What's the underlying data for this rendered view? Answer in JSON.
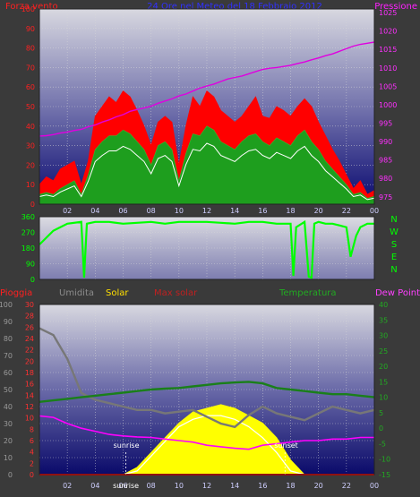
{
  "header": {
    "left_label": "Forza vento",
    "center_label": "24 Ore nel Meteo del 18 Febbraio 2012",
    "right_label": "Pressione"
  },
  "colors": {
    "wind_gust": "#ff0000",
    "wind_avg": "#1e9e1e",
    "wind_line": "#ffffff",
    "pressure": "#e000e0",
    "direction": "#00ff00",
    "rain": "#ff0000",
    "humidity": "#777777",
    "solar": "#ffff00",
    "max_solar": "#ffffff",
    "temperature": "#1a7f1a",
    "dew_point": "#ff00ff",
    "grid": "#d8d8d8"
  },
  "chart_data": [
    {
      "type": "area",
      "name": "wind-pressure",
      "left_axis_ticks": [
        "100",
        "90",
        "80",
        "70",
        "60",
        "50",
        "40",
        "30",
        "20",
        "10",
        "0"
      ],
      "right_axis_ticks": [
        "1025",
        "1020",
        "1015",
        "1010",
        "1005",
        "1000",
        "995",
        "990",
        "985",
        "980",
        "975"
      ],
      "ylim": [
        0,
        100
      ],
      "y2lim": [
        973,
        1026
      ],
      "x_ticks": [
        "02",
        "04",
        "06",
        "08",
        "10",
        "12",
        "14",
        "16",
        "18",
        "20",
        "22",
        "00"
      ],
      "x": [
        0,
        0.5,
        1,
        1.5,
        2,
        2.5,
        3,
        3.5,
        4,
        4.5,
        5,
        5.5,
        6,
        6.5,
        7,
        7.5,
        8,
        8.5,
        9,
        9.5,
        10,
        10.5,
        11,
        11.5,
        12,
        12.5,
        13,
        13.5,
        14,
        14.5,
        15,
        15.5,
        16,
        16.5,
        17,
        17.5,
        18,
        18.5,
        19,
        19.5,
        20,
        20.5,
        21,
        21.5,
        22,
        22.5,
        23,
        23.5,
        24
      ],
      "gust": [
        10,
        14,
        12,
        18,
        20,
        22,
        10,
        22,
        45,
        50,
        55,
        52,
        58,
        55,
        48,
        40,
        30,
        42,
        45,
        42,
        20,
        40,
        55,
        50,
        58,
        55,
        48,
        45,
        42,
        45,
        50,
        55,
        45,
        44,
        50,
        48,
        45,
        50,
        54,
        50,
        42,
        35,
        28,
        22,
        15,
        8,
        12,
        5,
        7
      ],
      "average": [
        5,
        6,
        5,
        8,
        10,
        12,
        5,
        15,
        28,
        32,
        35,
        35,
        38,
        36,
        32,
        28,
        20,
        30,
        32,
        28,
        12,
        26,
        36,
        35,
        40,
        38,
        32,
        30,
        28,
        32,
        35,
        36,
        32,
        30,
        34,
        32,
        30,
        35,
        38,
        32,
        28,
        22,
        18,
        14,
        10,
        5,
        6,
        3,
        4
      ],
      "pressure": [
        991.5,
        991.6,
        991.9,
        992.3,
        992.6,
        993.0,
        993.3,
        994.0,
        994.5,
        995.3,
        995.9,
        996.7,
        997.3,
        998.2,
        998.7,
        999.1,
        999.6,
        1000.4,
        1001.0,
        1001.6,
        1002.4,
        1002.9,
        1003.7,
        1004.5,
        1005.1,
        1005.6,
        1006.3,
        1007.0,
        1007.4,
        1007.8,
        1008.4,
        1009.0,
        1009.6,
        1009.9,
        1010.1,
        1010.4,
        1010.7,
        1011.2,
        1011.6,
        1012.2,
        1012.7,
        1013.3,
        1013.8,
        1014.5,
        1015.2,
        1015.9,
        1016.4,
        1016.7,
        1017.0
      ]
    },
    {
      "type": "line",
      "name": "wind-direction",
      "left_axis_ticks": [
        "360",
        "270",
        "180",
        "90",
        "0"
      ],
      "right_axis_letters": [
        "N",
        "W",
        "S",
        "E",
        "N"
      ],
      "ylim": [
        0,
        360
      ],
      "x": [
        0,
        1,
        2,
        3,
        3.2,
        3.4,
        4,
        5,
        6,
        7,
        8,
        9,
        10,
        11,
        12,
        13,
        14,
        15,
        16,
        17,
        18,
        18.2,
        18.4,
        19,
        19.3,
        19.5,
        19.7,
        20,
        20.5,
        21,
        21.5,
        22,
        22.3,
        22.7,
        23,
        23.5,
        24
      ],
      "values": [
        200,
        280,
        320,
        330,
        10,
        320,
        330,
        330,
        320,
        325,
        330,
        320,
        330,
        330,
        330,
        325,
        320,
        330,
        330,
        320,
        320,
        20,
        300,
        330,
        15,
        10,
        320,
        330,
        320,
        320,
        310,
        300,
        130,
        250,
        300,
        320,
        320
      ]
    },
    {
      "type": "line",
      "name": "weather-multi",
      "legend": [
        "Pioggia",
        "Umidita",
        "Solar",
        "Max solar",
        "Temperatura",
        "Dew Point"
      ],
      "left_axis_hum_ticks": [
        "100",
        "90",
        "80",
        "70",
        "60",
        "50",
        "40",
        "30",
        "20",
        "10",
        "0"
      ],
      "left_axis_rain_ticks": [
        "30",
        "28",
        "26",
        "24",
        "22",
        "20",
        "18",
        "16",
        "14",
        "12",
        "10",
        "8",
        "6",
        "4",
        "2",
        "0"
      ],
      "right_axis_ticks": [
        "40",
        "35",
        "30",
        "25",
        "20",
        "15",
        "10",
        "5",
        "0",
        "-5",
        "-10",
        "-15"
      ],
      "rain_ylim": [
        0,
        30
      ],
      "hum_ylim": [
        0,
        100
      ],
      "temp_ylim": [
        -15,
        40
      ],
      "x_ticks": [
        "02",
        "04",
        "06",
        "08",
        "10",
        "12",
        "14",
        "16",
        "18",
        "20",
        "22",
        "00"
      ],
      "x": [
        0,
        1,
        2,
        3,
        4,
        5,
        6,
        7,
        8,
        9,
        10,
        11,
        12,
        13,
        14,
        15,
        16,
        17,
        18,
        19,
        20,
        21,
        22,
        23,
        24
      ],
      "humidity": [
        86,
        82,
        68,
        48,
        44,
        42,
        40,
        38,
        38,
        36,
        37,
        38,
        34,
        30,
        28,
        35,
        40,
        36,
        34,
        32,
        36,
        40,
        38,
        36,
        38
      ],
      "temperature": [
        8.5,
        9,
        9.5,
        10,
        10.5,
        11,
        11.5,
        12,
        12.5,
        12.8,
        13,
        13.5,
        14,
        14.5,
        14.8,
        15,
        14.5,
        13,
        12.5,
        12,
        11.5,
        11,
        11,
        10.5,
        10
      ],
      "dew_point": [
        4,
        3.5,
        1.5,
        0,
        -1,
        -2,
        -2.5,
        -2.8,
        -3,
        -3.5,
        -4,
        -4.5,
        -5.5,
        -6,
        -6.5,
        -6.8,
        -5.5,
        -5,
        -4.5,
        -4,
        -4,
        -3.5,
        -3.5,
        -3,
        -3
      ],
      "solar": [
        0,
        0,
        0,
        0,
        0,
        0,
        0,
        1,
        3,
        5,
        7,
        8.5,
        9,
        9.5,
        9,
        8,
        7,
        5,
        2,
        0,
        0,
        0,
        0,
        0,
        0
      ],
      "max_solar": [
        0,
        0,
        0,
        0,
        0,
        0,
        0,
        0.5,
        2.5,
        4.5,
        6.5,
        7.5,
        8,
        8,
        7.5,
        6.5,
        5,
        3,
        0.5,
        0,
        0,
        0,
        0,
        0,
        0
      ],
      "rain": [
        0,
        0,
        0,
        0,
        0,
        0,
        0,
        0,
        0,
        0,
        0,
        0,
        0,
        0,
        0,
        0,
        0,
        0,
        0,
        0,
        0,
        0,
        0,
        0,
        0
      ],
      "sunrise_label": "sunrise",
      "sunset_label": "sunset",
      "sunrise_hour": 6.2,
      "sunset_hour": 17.6
    }
  ],
  "wind_panel_extra_ticks": {
    "zero_right": "975"
  }
}
